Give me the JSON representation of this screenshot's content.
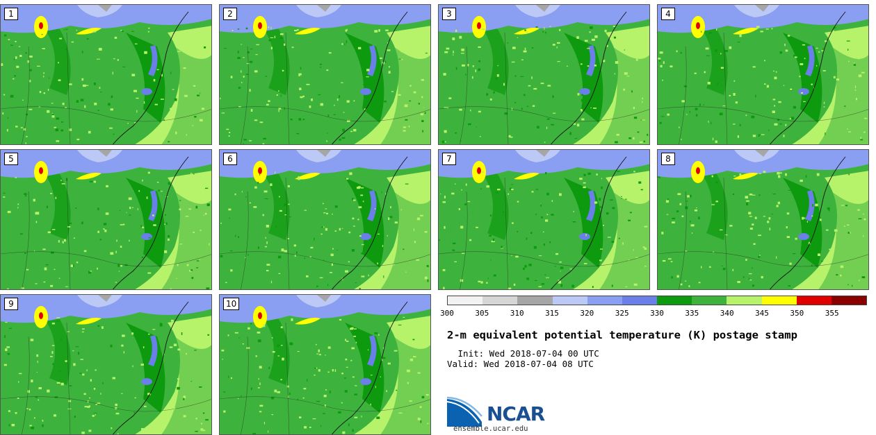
{
  "panels": [
    {
      "label": "1"
    },
    {
      "label": "2"
    },
    {
      "label": "3"
    },
    {
      "label": "4"
    },
    {
      "label": "5"
    },
    {
      "label": "6"
    },
    {
      "label": "7"
    },
    {
      "label": "8"
    },
    {
      "label": "9"
    },
    {
      "label": "10"
    }
  ],
  "colorbar": {
    "colors": [
      "#f2f2f2",
      "#d6d6d6",
      "#a6a6a6",
      "#bcc8f5",
      "#8a9ef2",
      "#6a7fe8",
      "#0e9a0e",
      "#3db33d",
      "#b6f26a",
      "#ffff00",
      "#e00000",
      "#8a0000"
    ],
    "ticks": [
      "300",
      "305",
      "310",
      "315",
      "320",
      "325",
      "330",
      "335",
      "340",
      "345",
      "350",
      "355"
    ]
  },
  "title": "2-m equivalent potential temperature (K) postage stamp",
  "init": " Init: Wed 2018-07-04 00 UTC",
  "valid": "Valid: Wed 2018-07-04 08 UTC",
  "logo": {
    "text": "NCAR",
    "site": "ensemble.ucar.edu"
  }
}
